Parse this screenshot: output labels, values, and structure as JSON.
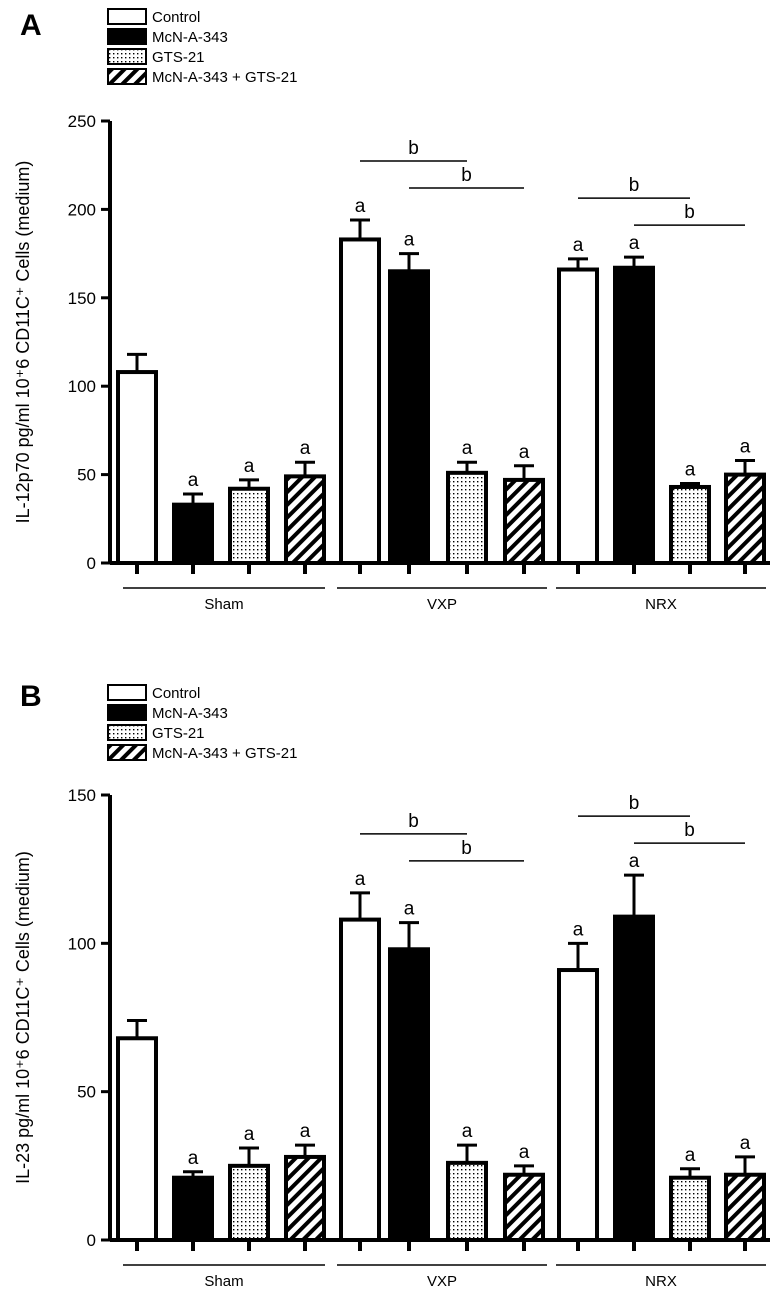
{
  "chart_data": [
    {
      "type": "bar",
      "panel": "A",
      "legend": [
        "Control",
        "McN-A-343",
        "GTS-21",
        "McN-A-343 + GTS-21"
      ],
      "ylabel": "IL-12p70 pg/ml 10⁺6 CD11C⁺ Cells (medium)",
      "ylim": [
        0,
        250
      ],
      "yticks": [
        0,
        50,
        100,
        150,
        200,
        250
      ],
      "ytick_labels": [
        "0",
        "50",
        "100",
        "150",
        "200",
        "250"
      ],
      "groups": [
        "Sham",
        "VXP",
        "NRX"
      ],
      "series": [
        {
          "name": "Control",
          "values": [
            108,
            183,
            166
          ],
          "errors": [
            10,
            11,
            6
          ],
          "letters": [
            "",
            "a",
            "a"
          ]
        },
        {
          "name": "McN-A-343",
          "values": [
            33,
            165,
            167
          ],
          "errors": [
            6,
            10,
            6
          ],
          "letters": [
            "a",
            "a",
            "a"
          ]
        },
        {
          "name": "GTS-21",
          "values": [
            42,
            51,
            43
          ],
          "errors": [
            5,
            6,
            2
          ],
          "letters": [
            "a",
            "a",
            "a"
          ]
        },
        {
          "name": "McN-A-343 + GTS-21",
          "values": [
            49,
            47,
            50
          ],
          "errors": [
            8,
            8,
            8
          ],
          "letters": [
            "a",
            "a",
            "a"
          ]
        }
      ],
      "brackets": [
        {
          "group": 1,
          "from": 0,
          "to": 2,
          "label": "b"
        },
        {
          "group": 1,
          "from": 1,
          "to": 3,
          "label": "b"
        },
        {
          "group": 2,
          "from": 0,
          "to": 2,
          "label": "b"
        },
        {
          "group": 2,
          "from": 1,
          "to": 3,
          "label": "b"
        }
      ]
    },
    {
      "type": "bar",
      "panel": "B",
      "legend": [
        "Control",
        "McN-A-343",
        "GTS-21",
        "McN-A-343 + GTS-21"
      ],
      "ylabel": "IL-23 pg/ml 10⁺6 CD11C⁺ Cells (medium)",
      "ylim": [
        0,
        150
      ],
      "yticks": [
        0,
        50,
        100,
        150
      ],
      "ytick_labels": [
        "0",
        "50",
        "100",
        "150"
      ],
      "groups": [
        "Sham",
        "VXP",
        "NRX"
      ],
      "series": [
        {
          "name": "Control",
          "values": [
            68,
            108,
            91
          ],
          "errors": [
            6,
            9,
            9
          ],
          "letters": [
            "",
            "a",
            "a"
          ]
        },
        {
          "name": "McN-A-343",
          "values": [
            21,
            98,
            109
          ],
          "errors": [
            2,
            9,
            14
          ],
          "letters": [
            "a",
            "a",
            "a"
          ]
        },
        {
          "name": "GTS-21",
          "values": [
            25,
            26,
            21
          ],
          "errors": [
            6,
            6,
            3
          ],
          "letters": [
            "a",
            "a",
            "a"
          ]
        },
        {
          "name": "McN-A-343 + GTS-21",
          "values": [
            28,
            22,
            22
          ],
          "errors": [
            4,
            3,
            6
          ],
          "letters": [
            "a",
            "a",
            "a"
          ]
        }
      ],
      "brackets": [
        {
          "group": 1,
          "from": 0,
          "to": 2,
          "label": "b"
        },
        {
          "group": 1,
          "from": 1,
          "to": 3,
          "label": "b"
        },
        {
          "group": 2,
          "from": 0,
          "to": 2,
          "label": "b"
        },
        {
          "group": 2,
          "from": 1,
          "to": 3,
          "label": "b"
        }
      ]
    }
  ]
}
